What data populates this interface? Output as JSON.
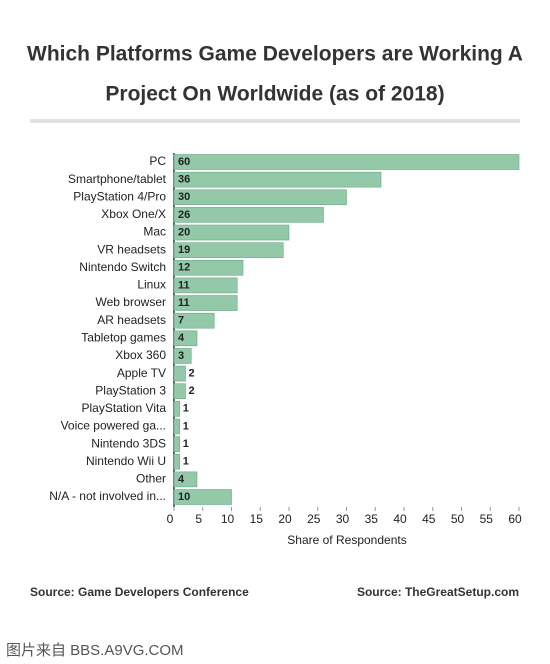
{
  "chart_data": {
    "type": "hbar",
    "title": "Which Platforms Game Developers are Working A Project On Worldwide (as of 2018)",
    "title_lines": [
      "Which Platforms Game Developers are Working A",
      "Project On Worldwide (as of 2018)"
    ],
    "categories": [
      "PC",
      "Smartphone/tablet",
      "PlayStation 4/Pro",
      "Xbox One/X",
      "Mac",
      "VR headsets",
      "Nintendo Switch",
      "Linux",
      "Web browser",
      "AR headsets",
      "Tabletop games",
      "Xbox 360",
      "Apple TV",
      "PlayStation 3",
      "PlayStation Vita",
      "Voice powered ga...",
      "Nintendo 3DS",
      "Nintendo Wii U",
      "Other",
      "N/A - not involved in..."
    ],
    "values": [
      60,
      36,
      30,
      26,
      20,
      19,
      12,
      11,
      11,
      7,
      4,
      3,
      2,
      2,
      1,
      1,
      1,
      1,
      4,
      10
    ],
    "color": "#93c9a9",
    "xlim": [
      0,
      60
    ],
    "xticks": [
      0,
      5,
      10,
      15,
      20,
      25,
      30,
      35,
      40,
      45,
      50,
      55,
      60
    ],
    "xlabel": "Share of Respondents",
    "source_left": "Source: Game Developers Conference",
    "source_right": "Source: TheGreatSetup.com"
  },
  "watermark": "图片来自 BBS.A9VG.COM"
}
